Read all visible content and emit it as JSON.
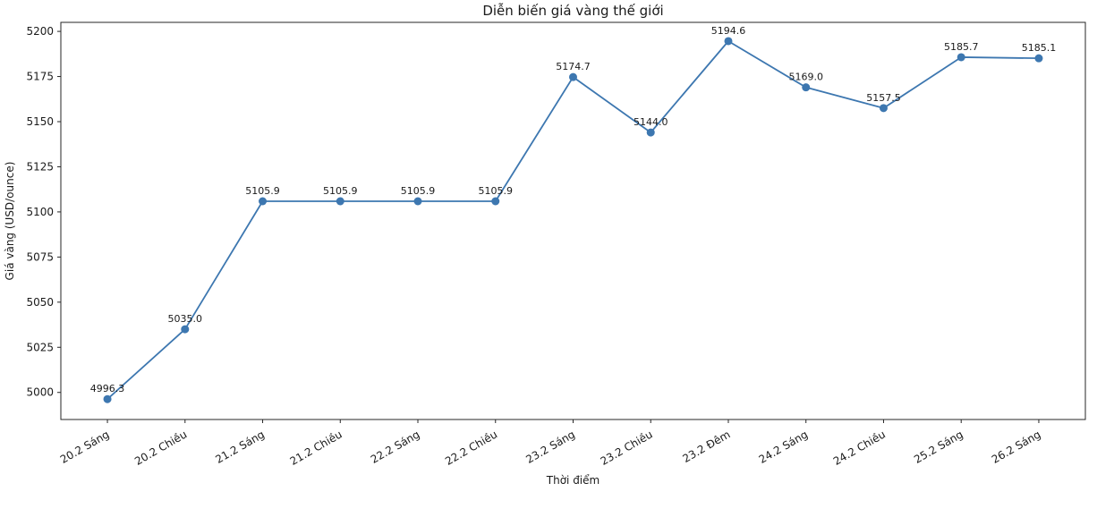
{
  "chart_data": {
    "type": "line",
    "title": "Diễn biến giá vàng thế giới",
    "xlabel": "Thời điểm",
    "ylabel": "Giá vàng (USD/ounce)",
    "categories": [
      "20.2 Sáng",
      "20.2 Chiều",
      "21.2 Sáng",
      "21.2 Chiều",
      "22.2 Sáng",
      "22.2 Chiều",
      "23.2 Sáng",
      "23.2 Chiều",
      "23.2 Đêm",
      "24.2 Sáng",
      "24.2 Chiều",
      "25.2 Sáng",
      "26.2 Sáng"
    ],
    "values": [
      4996.3,
      5035.0,
      5105.9,
      5105.9,
      5105.9,
      5105.9,
      5174.7,
      5144.0,
      5194.6,
      5169.0,
      5157.5,
      5185.7,
      5185.1
    ],
    "point_labels": [
      "4996.3",
      "5035.0",
      "5105.9",
      "5105.9",
      "5105.9",
      "5105.9",
      "5174.7",
      "5144.0",
      "5194.6",
      "5169.0",
      "5157.5",
      "5185.7",
      "5185.1"
    ],
    "yticks": [
      5000,
      5025,
      5050,
      5075,
      5100,
      5125,
      5150,
      5175,
      5200
    ],
    "ylim": [
      4985,
      5205
    ],
    "grid": false,
    "legend": "none",
    "line_color": "#3d77b0",
    "marker_color": "#3d77b0",
    "axis_color": "#262626",
    "text_color": "#1a1a1a"
  }
}
